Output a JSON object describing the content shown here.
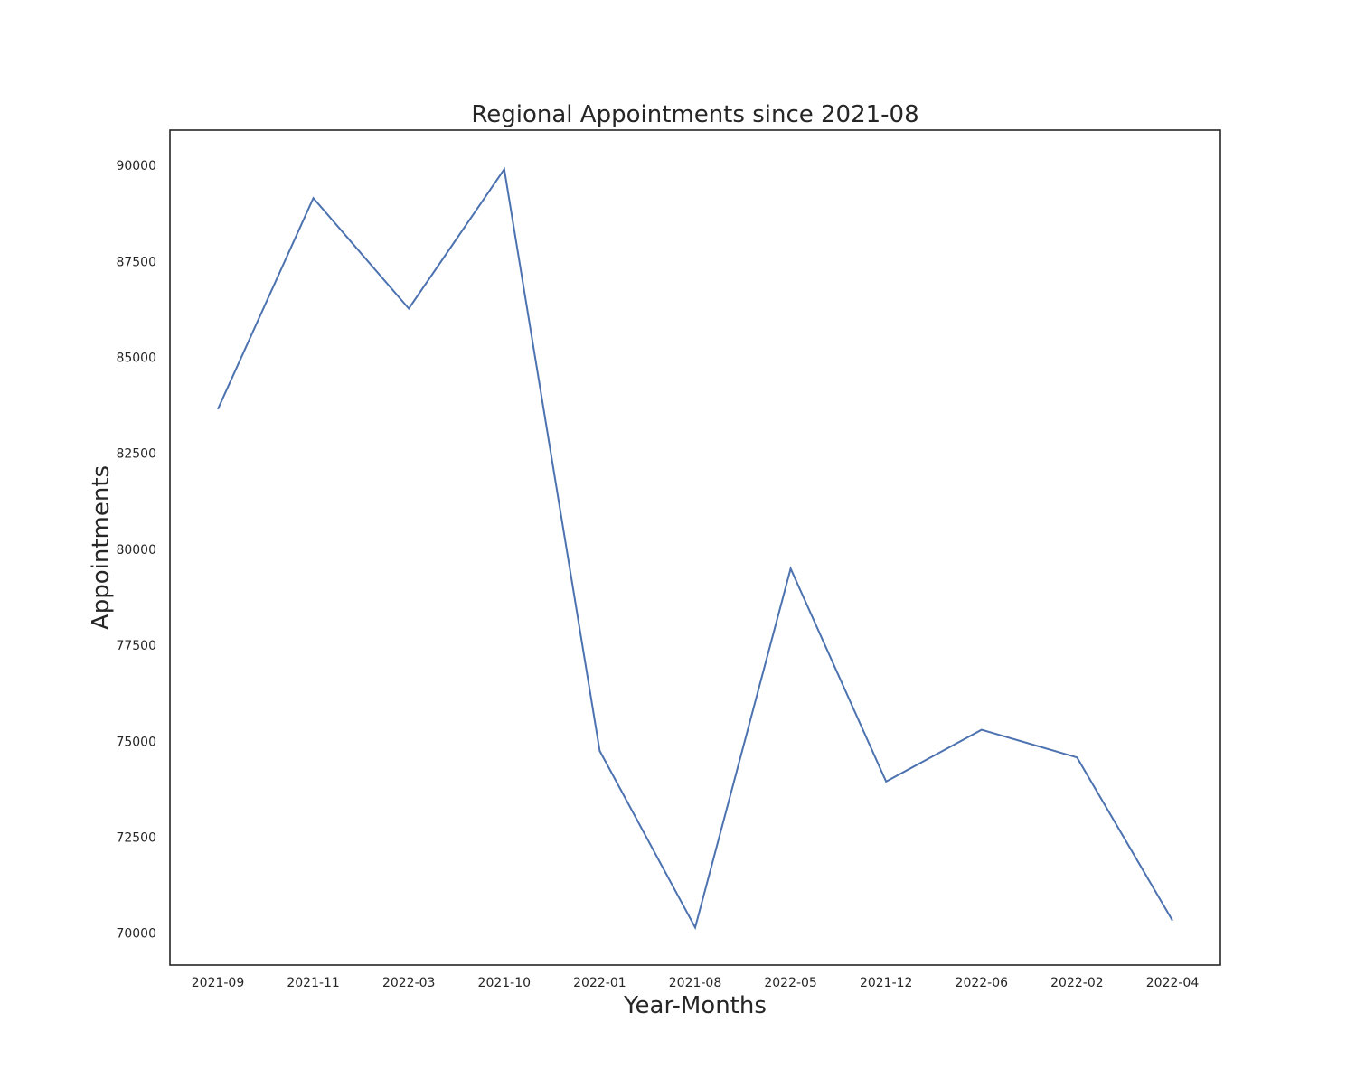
{
  "chart_data": {
    "type": "line",
    "title": "Regional Appointments since 2021-08",
    "xlabel": "Year-Months",
    "ylabel": "Appointments",
    "categories": [
      "2021-09",
      "2021-11",
      "2022-03",
      "2021-10",
      "2022-01",
      "2021-08",
      "2022-05",
      "2021-12",
      "2022-06",
      "2022-02",
      "2022-04"
    ],
    "series": [
      {
        "values": [
          83650,
          89150,
          86270,
          89900,
          74750,
          70150,
          79500,
          73950,
          75300,
          74580,
          70330
        ],
        "color": "#4c72b0"
      }
    ],
    "yticks": [
      70000,
      72500,
      75000,
      77500,
      80000,
      82500,
      85000,
      87500,
      90000
    ],
    "ylim": [
      69170,
      90920
    ],
    "grid": false,
    "legend": "none"
  }
}
